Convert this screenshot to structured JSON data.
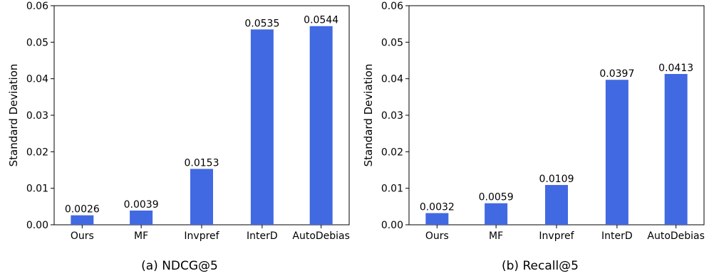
{
  "chart_data": [
    {
      "type": "bar",
      "caption": "(a) NDCG@5",
      "ylabel": "Standard Deviation",
      "categories": [
        "Ours",
        "MF",
        "Invpref",
        "InterD",
        "AutoDebias"
      ],
      "values": [
        0.0026,
        0.0039,
        0.0153,
        0.0535,
        0.0544
      ],
      "data_labels": [
        "0.0026",
        "0.0039",
        "0.0153",
        "0.0535",
        "0.0544"
      ],
      "ylim": [
        0,
        0.06
      ],
      "yticks": [
        "0.00",
        "0.01",
        "0.02",
        "0.03",
        "0.04",
        "0.05",
        "0.06"
      ],
      "bar_color": "#4169e1",
      "grid": false
    },
    {
      "type": "bar",
      "caption": "(b) Recall@5",
      "ylabel": "Standard Deviation",
      "categories": [
        "Ours",
        "MF",
        "Invpref",
        "InterD",
        "AutoDebias"
      ],
      "values": [
        0.0032,
        0.0059,
        0.0109,
        0.0397,
        0.0413
      ],
      "data_labels": [
        "0.0032",
        "0.0059",
        "0.0109",
        "0.0397",
        "0.0413"
      ],
      "ylim": [
        0,
        0.06
      ],
      "yticks": [
        "0.00",
        "0.01",
        "0.02",
        "0.03",
        "0.04",
        "0.05",
        "0.06"
      ],
      "bar_color": "#4169e1",
      "grid": false
    }
  ]
}
